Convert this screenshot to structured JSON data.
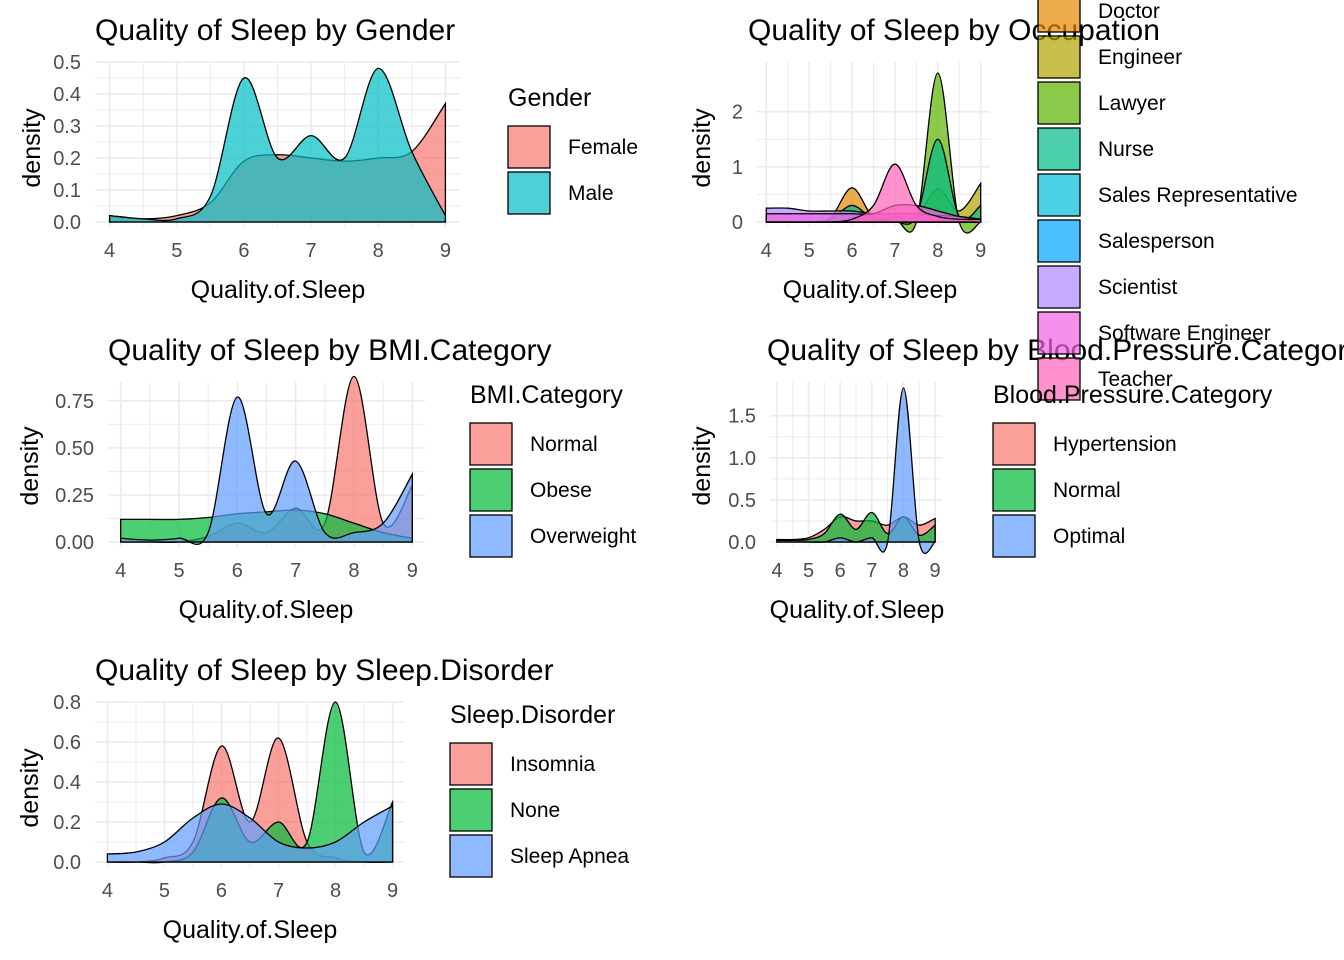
{
  "chart_data": [
    {
      "type": "area",
      "title": "Quality of Sleep by Gender",
      "xlabel": "Quality.of.Sleep",
      "ylabel": "density",
      "xlim": [
        4,
        9
      ],
      "ylim": [
        0,
        0.5
      ],
      "xticks": [
        "4",
        "5",
        "6",
        "7",
        "8",
        "9"
      ],
      "yticks": [
        "0.0",
        "0.1",
        "0.2",
        "0.3",
        "0.4",
        "0.5"
      ],
      "grid": true,
      "legend_position": "right",
      "legend_title": "Gender",
      "x": [
        4,
        4.5,
        5,
        5.5,
        6,
        6.5,
        7,
        7.5,
        8,
        8.5,
        9
      ],
      "series": [
        {
          "name": "Female",
          "color": "#F8766D",
          "values": [
            0.02,
            0.01,
            0.02,
            0.06,
            0.19,
            0.21,
            0.2,
            0.19,
            0.2,
            0.22,
            0.37
          ]
        },
        {
          "name": "Male",
          "color": "#00BFC4",
          "values": [
            0.02,
            0.01,
            0.01,
            0.08,
            0.45,
            0.2,
            0.27,
            0.2,
            0.48,
            0.22,
            0.02
          ]
        }
      ]
    },
    {
      "type": "area",
      "title": "Quality of Sleep by Occupation",
      "xlabel": "Quality.of.Sleep",
      "ylabel": "density",
      "xlim": [
        4,
        9
      ],
      "ylim": [
        0,
        2.9
      ],
      "xticks": [
        "4",
        "5",
        "6",
        "7",
        "8",
        "9"
      ],
      "yticks": [
        "0",
        "1",
        "2"
      ],
      "grid": true,
      "legend_position": "right",
      "legend_title": "",
      "x": [
        4,
        4.5,
        5,
        5.5,
        6,
        6.5,
        7,
        7.5,
        8,
        8.5,
        9
      ],
      "series": [
        {
          "name": "Doctor",
          "color": "#E58700",
          "values": [
            0.0,
            0.0,
            0.0,
            0.08,
            0.62,
            0.08,
            0.1,
            0.05,
            0.1,
            0.05,
            0.0
          ]
        },
        {
          "name": "Engineer",
          "color": "#B0A200",
          "values": [
            0.0,
            0.0,
            0.0,
            0.0,
            0.0,
            0.0,
            0.1,
            0.1,
            0.6,
            0.2,
            0.7
          ]
        },
        {
          "name": "Lawyer",
          "color": "#5BB300",
          "values": [
            0.0,
            0.0,
            0.0,
            0.0,
            0.0,
            0.0,
            0.05,
            0.0,
            2.7,
            0.0,
            0.0
          ]
        },
        {
          "name": "Nurse",
          "color": "#00BA8A",
          "values": [
            0.0,
            0.0,
            0.0,
            0.05,
            0.3,
            0.05,
            0.0,
            0.1,
            1.5,
            0.1,
            0.3
          ]
        },
        {
          "name": "Sales Representative",
          "color": "#00BCD8",
          "values": [
            0.0,
            0.0,
            0.0,
            0.0,
            0.0,
            0.0,
            0.0,
            0.0,
            0.0,
            0.0,
            0.0
          ]
        },
        {
          "name": "Salesperson",
          "color": "#00A5FF",
          "values": [
            0.0,
            0.0,
            0.0,
            0.0,
            0.0,
            0.0,
            0.0,
            0.0,
            0.0,
            0.0,
            0.0
          ]
        },
        {
          "name": "Scientist",
          "color": "#AE87FF",
          "values": [
            0.25,
            0.25,
            0.2,
            0.2,
            0.2,
            0.15,
            0.15,
            0.15,
            0.12,
            0.1,
            0.05
          ]
        },
        {
          "name": "Software Engineer",
          "color": "#F263E2",
          "values": [
            0.15,
            0.15,
            0.15,
            0.15,
            0.15,
            0.15,
            0.3,
            0.3,
            0.2,
            0.1,
            0.05
          ]
        },
        {
          "name": "Teacher",
          "color": "#FF63B6",
          "values": [
            0.0,
            0.0,
            0.0,
            0.0,
            0.05,
            0.3,
            1.05,
            0.3,
            0.1,
            0.05,
            0.05
          ]
        }
      ]
    },
    {
      "type": "area",
      "title": "Quality of Sleep by BMI.Category",
      "xlabel": "Quality.of.Sleep",
      "ylabel": "density",
      "xlim": [
        4,
        9
      ],
      "ylim": [
        0,
        0.85
      ],
      "xticks": [
        "4",
        "5",
        "6",
        "7",
        "8",
        "9"
      ],
      "yticks": [
        "0.00",
        "0.25",
        "0.50",
        "0.75"
      ],
      "grid": true,
      "legend_position": "right",
      "legend_title": "BMI.Category",
      "x": [
        4,
        4.5,
        5,
        5.5,
        6,
        6.5,
        7,
        7.5,
        8,
        8.5,
        9
      ],
      "series": [
        {
          "name": "Normal",
          "color": "#F8766D",
          "values": [
            0.0,
            0.0,
            0.0,
            0.03,
            0.1,
            0.05,
            0.18,
            0.1,
            0.88,
            0.1,
            0.3
          ]
        },
        {
          "name": "Obese",
          "color": "#00BA38",
          "values": [
            0.12,
            0.12,
            0.12,
            0.13,
            0.15,
            0.16,
            0.17,
            0.15,
            0.1,
            0.05,
            0.02
          ]
        },
        {
          "name": "Overweight",
          "color": "#619CFF",
          "values": [
            0.02,
            0.01,
            0.02,
            0.05,
            0.77,
            0.15,
            0.43,
            0.05,
            0.05,
            0.1,
            0.36
          ]
        }
      ]
    },
    {
      "type": "area",
      "title": "Quality of Sleep by Blood.Pressure.Category",
      "xlabel": "Quality.of.Sleep",
      "ylabel": "density",
      "xlim": [
        4,
        9
      ],
      "ylim": [
        0,
        1.9
      ],
      "xticks": [
        "4",
        "5",
        "6",
        "7",
        "8",
        "9"
      ],
      "yticks": [
        "0.0",
        "0.5",
        "1.0",
        "1.5"
      ],
      "grid": true,
      "legend_position": "right",
      "legend_title": "Blood.Pressure.Category",
      "x": [
        4,
        4.5,
        5,
        5.5,
        6,
        6.5,
        7,
        7.5,
        8,
        8.5,
        9
      ],
      "series": [
        {
          "name": "Hypertension",
          "color": "#F8766D",
          "values": [
            0.03,
            0.03,
            0.05,
            0.15,
            0.3,
            0.25,
            0.25,
            0.2,
            0.3,
            0.2,
            0.28
          ]
        },
        {
          "name": "Normal",
          "color": "#00BA38",
          "values": [
            0.02,
            0.02,
            0.03,
            0.1,
            0.33,
            0.15,
            0.35,
            0.1,
            0.3,
            0.08,
            0.2
          ]
        },
        {
          "name": "Optimal",
          "color": "#619CFF",
          "values": [
            0.0,
            0.0,
            0.0,
            0.0,
            0.05,
            0.0,
            0.05,
            0.0,
            1.83,
            0.0,
            0.0
          ]
        }
      ]
    },
    {
      "type": "area",
      "title": "Quality of Sleep by Sleep.Disorder",
      "xlabel": "Quality.of.Sleep",
      "ylabel": "density",
      "xlim": [
        4,
        9
      ],
      "ylim": [
        0,
        0.8
      ],
      "xticks": [
        "4",
        "5",
        "6",
        "7",
        "8",
        "9"
      ],
      "yticks": [
        "0.0",
        "0.2",
        "0.4",
        "0.6",
        "0.8"
      ],
      "grid": true,
      "legend_position": "right",
      "legend_title": "Sleep.Disorder",
      "x": [
        4,
        4.5,
        5,
        5.5,
        6,
        6.5,
        7,
        7.5,
        8,
        8.5,
        9
      ],
      "series": [
        {
          "name": "Insomnia",
          "color": "#F8766D",
          "values": [
            0.0,
            0.0,
            0.02,
            0.1,
            0.58,
            0.2,
            0.62,
            0.1,
            0.02,
            0.0,
            0.0
          ]
        },
        {
          "name": "None",
          "color": "#00BA38",
          "values": [
            0.0,
            0.0,
            0.0,
            0.05,
            0.32,
            0.1,
            0.2,
            0.1,
            0.8,
            0.05,
            0.3
          ]
        },
        {
          "name": "Sleep Apnea",
          "color": "#619CFF",
          "values": [
            0.04,
            0.05,
            0.1,
            0.22,
            0.29,
            0.22,
            0.1,
            0.07,
            0.1,
            0.2,
            0.28
          ]
        }
      ]
    }
  ]
}
